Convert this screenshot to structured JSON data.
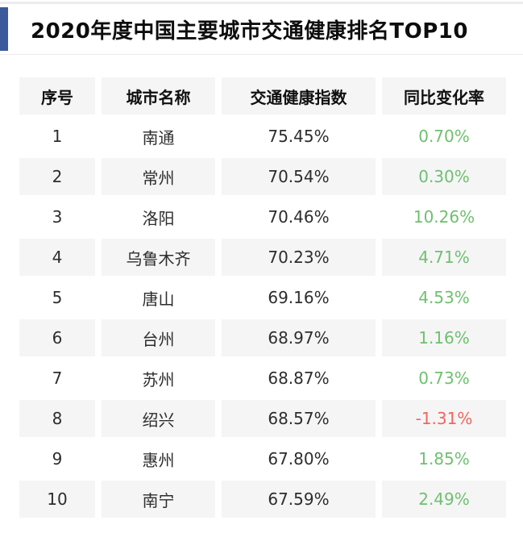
{
  "colors": {
    "accent_blue": "#3a5a9c",
    "positive_green": "#6fc06f",
    "negative_red": "#f2645c",
    "row_stripe": "#f5f5f6",
    "text_dark": "#2d2d2d"
  },
  "chart_data": {
    "type": "table",
    "title": "2020年度中国主要城市交通健康排名TOP10",
    "columns": [
      "序号",
      "城市名称",
      "交通健康指数",
      "同比变化率"
    ],
    "rows": [
      {
        "rank": "1",
        "city": "南通",
        "index": "75.45%",
        "yoy_change": "0.70%",
        "trend": "positive"
      },
      {
        "rank": "2",
        "city": "常州",
        "index": "70.54%",
        "yoy_change": "0.30%",
        "trend": "positive"
      },
      {
        "rank": "3",
        "city": "洛阳",
        "index": "70.46%",
        "yoy_change": "10.26%",
        "trend": "positive"
      },
      {
        "rank": "4",
        "city": "乌鲁木齐",
        "index": "70.23%",
        "yoy_change": "4.71%",
        "trend": "positive"
      },
      {
        "rank": "5",
        "city": "唐山",
        "index": "69.16%",
        "yoy_change": "4.53%",
        "trend": "positive"
      },
      {
        "rank": "6",
        "city": "台州",
        "index": "68.97%",
        "yoy_change": "1.16%",
        "trend": "positive"
      },
      {
        "rank": "7",
        "city": "苏州",
        "index": "68.87%",
        "yoy_change": "0.73%",
        "trend": "positive"
      },
      {
        "rank": "8",
        "city": "绍兴",
        "index": "68.57%",
        "yoy_change": "-1.31%",
        "trend": "negative"
      },
      {
        "rank": "9",
        "city": "惠州",
        "index": "67.80%",
        "yoy_change": "1.85%",
        "trend": "positive"
      },
      {
        "rank": "10",
        "city": "南宁",
        "index": "67.59%",
        "yoy_change": "2.49%",
        "trend": "positive"
      }
    ]
  }
}
